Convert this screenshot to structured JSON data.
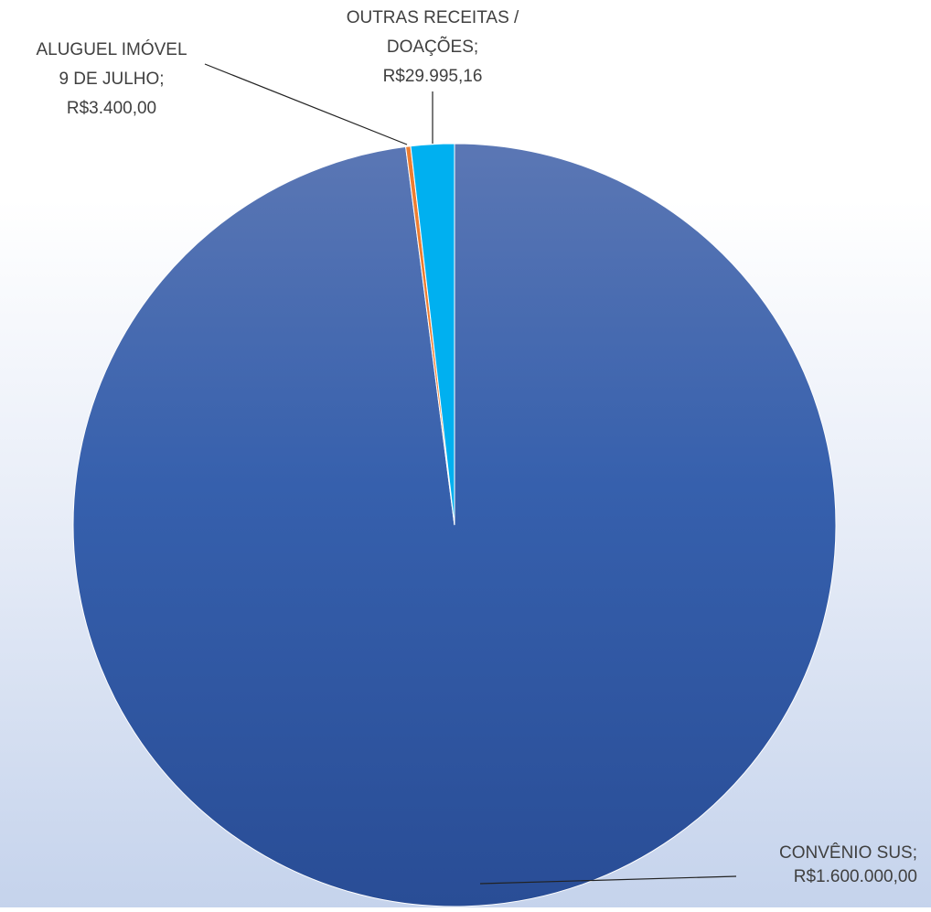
{
  "chart_data": {
    "type": "pie",
    "title": "",
    "slices": [
      {
        "category": "CONVÊNIO SUS",
        "value": 1600000.0,
        "label_lines": [
          "CONVÊNIO SUS;",
          "R$1.600.000,00"
        ],
        "color": "#2f55a5"
      },
      {
        "category": "ALUGUEL IMÓVEL 9 DE JULHO",
        "value": 3400.0,
        "label_lines": [
          "ALUGUEL IMÓVEL",
          "9 DE JULHO;",
          "R$3.400,00"
        ],
        "color": "#ed7d31"
      },
      {
        "category": "OUTRAS RECEITAS / DOAÇÕES",
        "value": 29995.16,
        "label_lines": [
          "OUTRAS RECEITAS /",
          "DOAÇÕES;",
          "R$29.995,16"
        ],
        "color": "#00b0f0"
      }
    ],
    "legend": "none",
    "data_labels": "outside with leader lines"
  }
}
